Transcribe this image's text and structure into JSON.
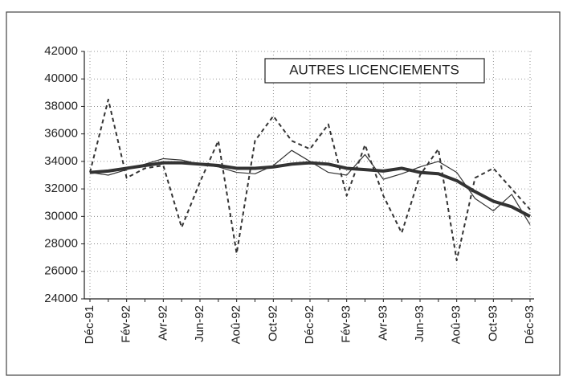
{
  "chart_data": {
    "type": "line",
    "title": "AUTRES LICENCIEMENTS",
    "categories": [
      "Déc-91",
      null,
      "Fév-92",
      null,
      "Avr-92",
      null,
      "Jun-92",
      null,
      "Aoû-92",
      null,
      "Oct-92",
      null,
      "Déc-92",
      null,
      "Fév-93",
      null,
      "Avr-93",
      null,
      "Jun-93",
      null,
      "Aoû-93",
      null,
      "Oct-93",
      null,
      "Déc-93"
    ],
    "series": [
      {
        "color": "#333333",
        "style": "dashed",
        "width": 2,
        "values": [
          33200,
          38500,
          32800,
          33500,
          33700,
          29200,
          32500,
          35500,
          27300,
          35500,
          37300,
          35500,
          34900,
          36700,
          31500,
          35200,
          31500,
          28800,
          33000,
          34900,
          26800,
          32800,
          33500,
          32000,
          30500
        ]
      },
      {
        "color": "#333333",
        "style": "solid",
        "width": 1.2,
        "values": [
          33200,
          33000,
          33400,
          33800,
          34200,
          34100,
          33800,
          33600,
          33200,
          33100,
          33700,
          34800,
          34000,
          33200,
          33000,
          34500,
          32700,
          33100,
          33600,
          34000,
          33200,
          31300,
          30400,
          31600,
          29400
        ]
      },
      {
        "color": "#333333",
        "style": "solid",
        "width": 4,
        "values": [
          33200,
          33300,
          33500,
          33700,
          33900,
          33900,
          33800,
          33700,
          33500,
          33500,
          33600,
          33800,
          33900,
          33800,
          33500,
          33400,
          33300,
          33500,
          33200,
          33100,
          32600,
          31800,
          31100,
          30700,
          30000
        ]
      }
    ],
    "ylim": [
      24000,
      42000
    ],
    "yticks": [
      24000,
      26000,
      28000,
      30000,
      32000,
      34000,
      36000,
      38000,
      40000,
      42000
    ],
    "grid": true
  }
}
